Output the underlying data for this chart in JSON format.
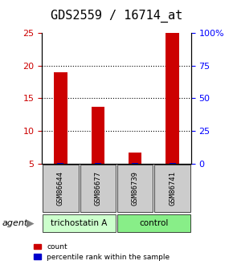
{
  "title": "GDS2559 / 16714_at",
  "samples": [
    "GSM86644",
    "GSM86677",
    "GSM86739",
    "GSM86741"
  ],
  "red_values": [
    19.0,
    13.7,
    6.7,
    25.0
  ],
  "blue_values": [
    0.5,
    0.4,
    0.4,
    0.4
  ],
  "red_base": 5.0,
  "blue_base": 5.0,
  "ylim_left": [
    5,
    25
  ],
  "ylim_right": [
    0,
    100
  ],
  "yticks_left": [
    5,
    10,
    15,
    20,
    25
  ],
  "yticks_right": [
    0,
    25,
    50,
    75,
    100
  ],
  "yticklabels_right": [
    "0",
    "25",
    "50",
    "75",
    "100%"
  ],
  "groups": [
    {
      "label": "trichostatin A",
      "start": 0,
      "end": 2,
      "color": "#ccffcc"
    },
    {
      "label": "control",
      "start": 2,
      "end": 4,
      "color": "#88ee88"
    }
  ],
  "agent_label": "agent",
  "legend_red": "count",
  "legend_blue": "percentile rank within the sample",
  "bar_width": 0.35,
  "red_color": "#cc0000",
  "blue_color": "#0000cc",
  "grid_color": "#000000",
  "title_fontsize": 11,
  "tick_fontsize": 8,
  "sample_box_color": "#cccccc"
}
